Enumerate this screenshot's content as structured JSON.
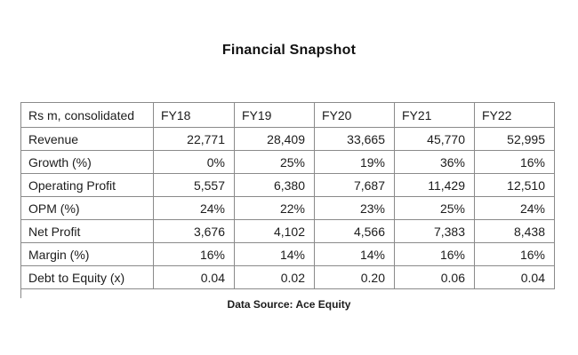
{
  "title": "Financial Snapshot",
  "footer": "Data Source: Ace Equity",
  "table": {
    "header": [
      "Rs m, consolidated",
      "FY18",
      "FY19",
      "FY20",
      "FY21",
      "FY22"
    ],
    "rows": [
      [
        "Revenue",
        "22,771",
        "28,409",
        "33,665",
        "45,770",
        "52,995"
      ],
      [
        "Growth (%)",
        "0%",
        "25%",
        "19%",
        "36%",
        "16%"
      ],
      [
        "Operating Profit",
        "5,557",
        "6,380",
        "7,687",
        "11,429",
        "12,510"
      ],
      [
        "OPM (%)",
        "24%",
        "22%",
        "23%",
        "25%",
        "24%"
      ],
      [
        "Net Profit",
        "3,676",
        "4,102",
        "4,566",
        "7,383",
        "8,438"
      ],
      [
        "Margin (%)",
        "16%",
        "14%",
        "14%",
        "16%",
        "16%"
      ],
      [
        "Debt to Equity (x)",
        "0.04",
        "0.02",
        "0.20",
        "0.06",
        "0.04"
      ]
    ]
  },
  "chart_data": {
    "type": "table",
    "title": "Financial Snapshot",
    "unit_note": "Rs m, consolidated",
    "columns": [
      "FY18",
      "FY19",
      "FY20",
      "FY21",
      "FY22"
    ],
    "rows": [
      {
        "metric": "Revenue",
        "values": [
          22771,
          28409,
          33665,
          45770,
          52995
        ]
      },
      {
        "metric": "Growth (%)",
        "values": [
          0,
          25,
          19,
          36,
          16
        ]
      },
      {
        "metric": "Operating Profit",
        "values": [
          5557,
          6380,
          7687,
          11429,
          12510
        ]
      },
      {
        "metric": "OPM (%)",
        "values": [
          24,
          22,
          23,
          25,
          24
        ]
      },
      {
        "metric": "Net Profit",
        "values": [
          3676,
          4102,
          4566,
          7383,
          8438
        ]
      },
      {
        "metric": "Margin (%)",
        "values": [
          16,
          14,
          14,
          16,
          16
        ]
      },
      {
        "metric": "Debt to Equity (x)",
        "values": [
          0.04,
          0.02,
          0.2,
          0.06,
          0.04
        ]
      }
    ],
    "source": "Data Source: Ace Equity"
  },
  "colors": {
    "background": "#ffffff",
    "text": "#1c1c1c",
    "border": "#8a8a8a"
  }
}
